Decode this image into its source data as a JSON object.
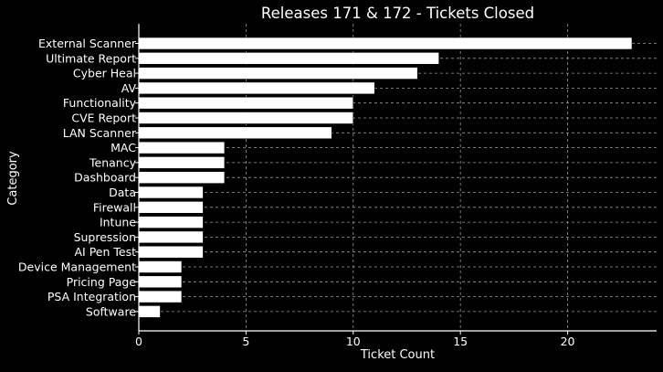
{
  "chart_data": {
    "type": "bar",
    "orientation": "horizontal",
    "title": "Releases 171 & 172 - Tickets Closed",
    "xlabel": "Ticket Count",
    "ylabel": "Category",
    "xlim": [
      0,
      24.15
    ],
    "xticks": [
      "0",
      "5",
      "10",
      "15",
      "20"
    ],
    "grid": true,
    "categories": [
      "External Scanner",
      "Ultimate Report",
      "Cyber Heal",
      "AV",
      "Functionality",
      "CVE Report",
      "LAN Scanner",
      "MAC",
      "Tenancy",
      "Dashboard",
      "Data",
      "Firewall",
      "Intune",
      "Supression",
      "AI Pen Test",
      "Device Management",
      "Pricing Page",
      "PSA Integration",
      "Software"
    ],
    "values": [
      23,
      14,
      13,
      11,
      10,
      10,
      9,
      4,
      4,
      4,
      3,
      3,
      3,
      3,
      3,
      2,
      2,
      2,
      1
    ],
    "colors": {
      "background": "#000000",
      "bar_fill": "#ffffff",
      "bar_edge": "#000000",
      "grid": "#9a9a9a",
      "axis": "#ffffff",
      "text": "#ffffff"
    }
  }
}
